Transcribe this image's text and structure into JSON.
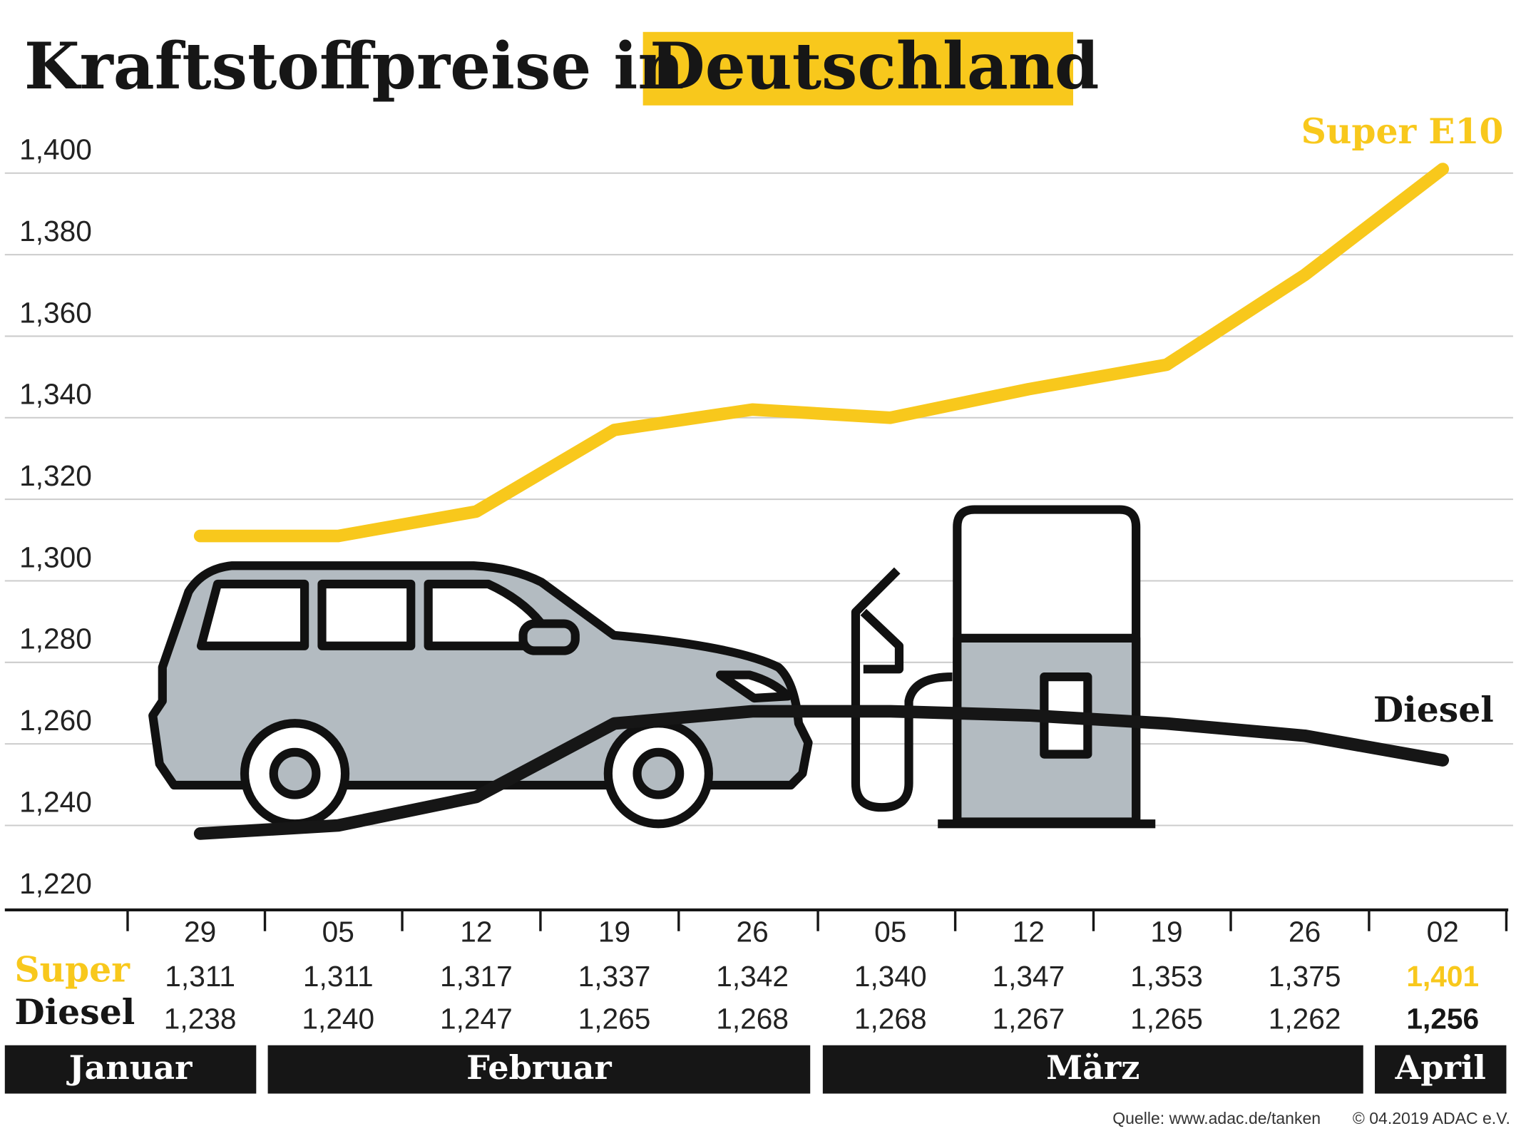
{
  "chart_data": {
    "type": "line",
    "title_parts": [
      "Kraftstoffpreise in",
      "Deutschland"
    ],
    "categories": [
      "29",
      "05",
      "12",
      "19",
      "26",
      "05",
      "12",
      "19",
      "26",
      "02"
    ],
    "months": [
      "Januar",
      "Februar",
      "März",
      "April"
    ],
    "row_labels": [
      "Super",
      "Diesel"
    ],
    "series": [
      {
        "name": "Super E10",
        "color": "#f8c81c",
        "values": [
          1.311,
          1.311,
          1.317,
          1.337,
          1.342,
          1.34,
          1.347,
          1.353,
          1.375,
          1.401
        ],
        "value_labels": [
          "1,311",
          "1,311",
          "1,317",
          "1,337",
          "1,342",
          "1,340",
          "1,347",
          "1,353",
          "1,375",
          "1,401"
        ]
      },
      {
        "name": "Diesel",
        "color": "#161616",
        "values": [
          1.238,
          1.24,
          1.247,
          1.265,
          1.268,
          1.268,
          1.267,
          1.265,
          1.262,
          1.256
        ],
        "value_labels": [
          "1,238",
          "1,240",
          "1,247",
          "1,265",
          "1,268",
          "1,268",
          "1,267",
          "1,265",
          "1,262",
          "1,256"
        ]
      }
    ],
    "ylim": [
      1.22,
      1.4
    ],
    "yticks": [
      {
        "value": 1.22,
        "label": "1,220"
      },
      {
        "value": 1.24,
        "label": "1,240"
      },
      {
        "value": 1.26,
        "label": "1,260"
      },
      {
        "value": 1.28,
        "label": "1,280"
      },
      {
        "value": 1.3,
        "label": "1,300"
      },
      {
        "value": 1.32,
        "label": "1,320"
      },
      {
        "value": 1.34,
        "label": "1,340"
      },
      {
        "value": 1.36,
        "label": "1,360"
      },
      {
        "value": 1.38,
        "label": "1,380"
      },
      {
        "value": 1.4,
        "label": "1,400"
      }
    ],
    "grid": true,
    "source": "Quelle: www.adac.de/tanken",
    "copyright": "© 04.2019  ADAC e.V."
  }
}
